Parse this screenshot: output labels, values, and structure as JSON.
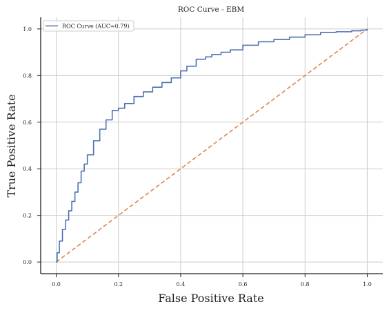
{
  "chart_data": {
    "type": "line",
    "title": "ROC Curve - EBM",
    "xlabel": "False Positive Rate",
    "ylabel": "True Positive Rate",
    "xlim": [
      -0.05,
      1.05
    ],
    "ylim": [
      -0.05,
      1.05
    ],
    "xticks": [
      "0.0",
      "0.2",
      "0.4",
      "0.6",
      "0.8",
      "1.0"
    ],
    "yticks": [
      "0.0",
      "0.2",
      "0.4",
      "0.6",
      "0.8",
      "1.0"
    ],
    "grid": true,
    "legend_position": "top-left",
    "series": [
      {
        "name": "ROC Curve (AUC=0.79)",
        "color": "#4c72b0",
        "style": "solid",
        "x": [
          0,
          0.003,
          0.01,
          0.02,
          0.03,
          0.04,
          0.05,
          0.06,
          0.07,
          0.08,
          0.09,
          0.1,
          0.12,
          0.14,
          0.16,
          0.18,
          0.2,
          0.22,
          0.25,
          0.28,
          0.31,
          0.34,
          0.37,
          0.4,
          0.42,
          0.45,
          0.48,
          0.5,
          0.53,
          0.56,
          0.6,
          0.65,
          0.7,
          0.75,
          0.8,
          0.85,
          0.9,
          0.95,
          0.98,
          1.0
        ],
        "y": [
          0,
          0.04,
          0.09,
          0.14,
          0.18,
          0.22,
          0.26,
          0.3,
          0.34,
          0.39,
          0.42,
          0.46,
          0.52,
          0.57,
          0.61,
          0.65,
          0.66,
          0.68,
          0.71,
          0.73,
          0.75,
          0.77,
          0.79,
          0.82,
          0.84,
          0.87,
          0.88,
          0.89,
          0.9,
          0.91,
          0.93,
          0.945,
          0.955,
          0.965,
          0.975,
          0.985,
          0.988,
          0.992,
          0.995,
          1.0
        ]
      },
      {
        "name": "",
        "color": "#dd8452",
        "style": "dashed",
        "x": [
          0,
          1
        ],
        "y": [
          0,
          1
        ]
      }
    ]
  }
}
